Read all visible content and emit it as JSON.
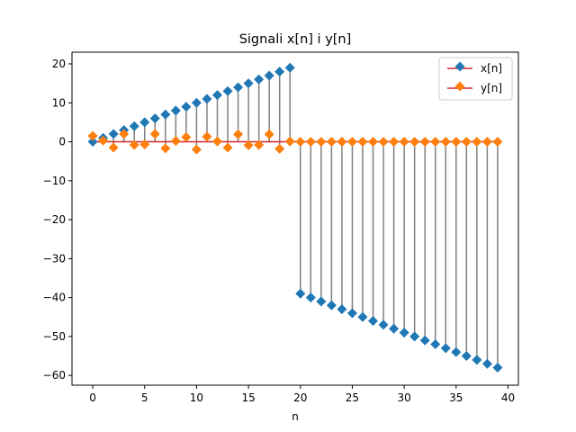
{
  "chart_data": {
    "type": "stem",
    "title": "Signali x[n] i y[n]",
    "xlabel": "n",
    "ylabel": "",
    "xlim": [
      -2,
      41
    ],
    "ylim": [
      -62.5,
      23
    ],
    "xticks": [
      0,
      5,
      10,
      15,
      20,
      25,
      30,
      35,
      40
    ],
    "xtick_labels": [
      "0",
      "5",
      "10",
      "15",
      "20",
      "25",
      "30",
      "35",
      "40"
    ],
    "yticks": [
      20,
      10,
      0,
      -10,
      -20,
      -30,
      -40,
      -50,
      -60
    ],
    "ytick_labels": [
      "20",
      "10",
      "0",
      "−10",
      "−20",
      "−30",
      "−40",
      "−50",
      "−60"
    ],
    "grid": false,
    "legend_position": "top-right",
    "stem_color": "#808080",
    "baseline_color": "#d62728",
    "x": [
      0,
      1,
      2,
      3,
      4,
      5,
      6,
      7,
      8,
      9,
      10,
      11,
      12,
      13,
      14,
      15,
      16,
      17,
      18,
      19,
      20,
      21,
      22,
      23,
      24,
      25,
      26,
      27,
      28,
      29,
      30,
      31,
      32,
      33,
      34,
      35,
      36,
      37,
      38,
      39
    ],
    "series": [
      {
        "name": "x[n]",
        "color": "#1f77b4",
        "marker": "diamond",
        "values": [
          0,
          1,
          2,
          3,
          4,
          5,
          6,
          7,
          8,
          9,
          10,
          11,
          12,
          13,
          14,
          15,
          16,
          17,
          18,
          19,
          -39,
          -40,
          -41,
          -42,
          -43,
          -44,
          -45,
          -46,
          -47,
          -48,
          -49,
          -50,
          -51,
          -52,
          -53,
          -54,
          -55,
          -56,
          -57,
          -58
        ]
      },
      {
        "name": "y[n]",
        "color": "#ff7f0e",
        "marker": "diamond",
        "values": [
          1.5,
          0.3,
          -1.5,
          2.0,
          -0.8,
          -0.7,
          2.0,
          -1.7,
          0.2,
          1.2,
          -2.0,
          1.3,
          0.1,
          -1.5,
          1.9,
          -0.9,
          -0.8,
          1.9,
          -1.8,
          0.1,
          0,
          0,
          0,
          0,
          0,
          0,
          0,
          0,
          0,
          0,
          0,
          0,
          0,
          0,
          0,
          0,
          0,
          0,
          0,
          0
        ]
      }
    ]
  }
}
